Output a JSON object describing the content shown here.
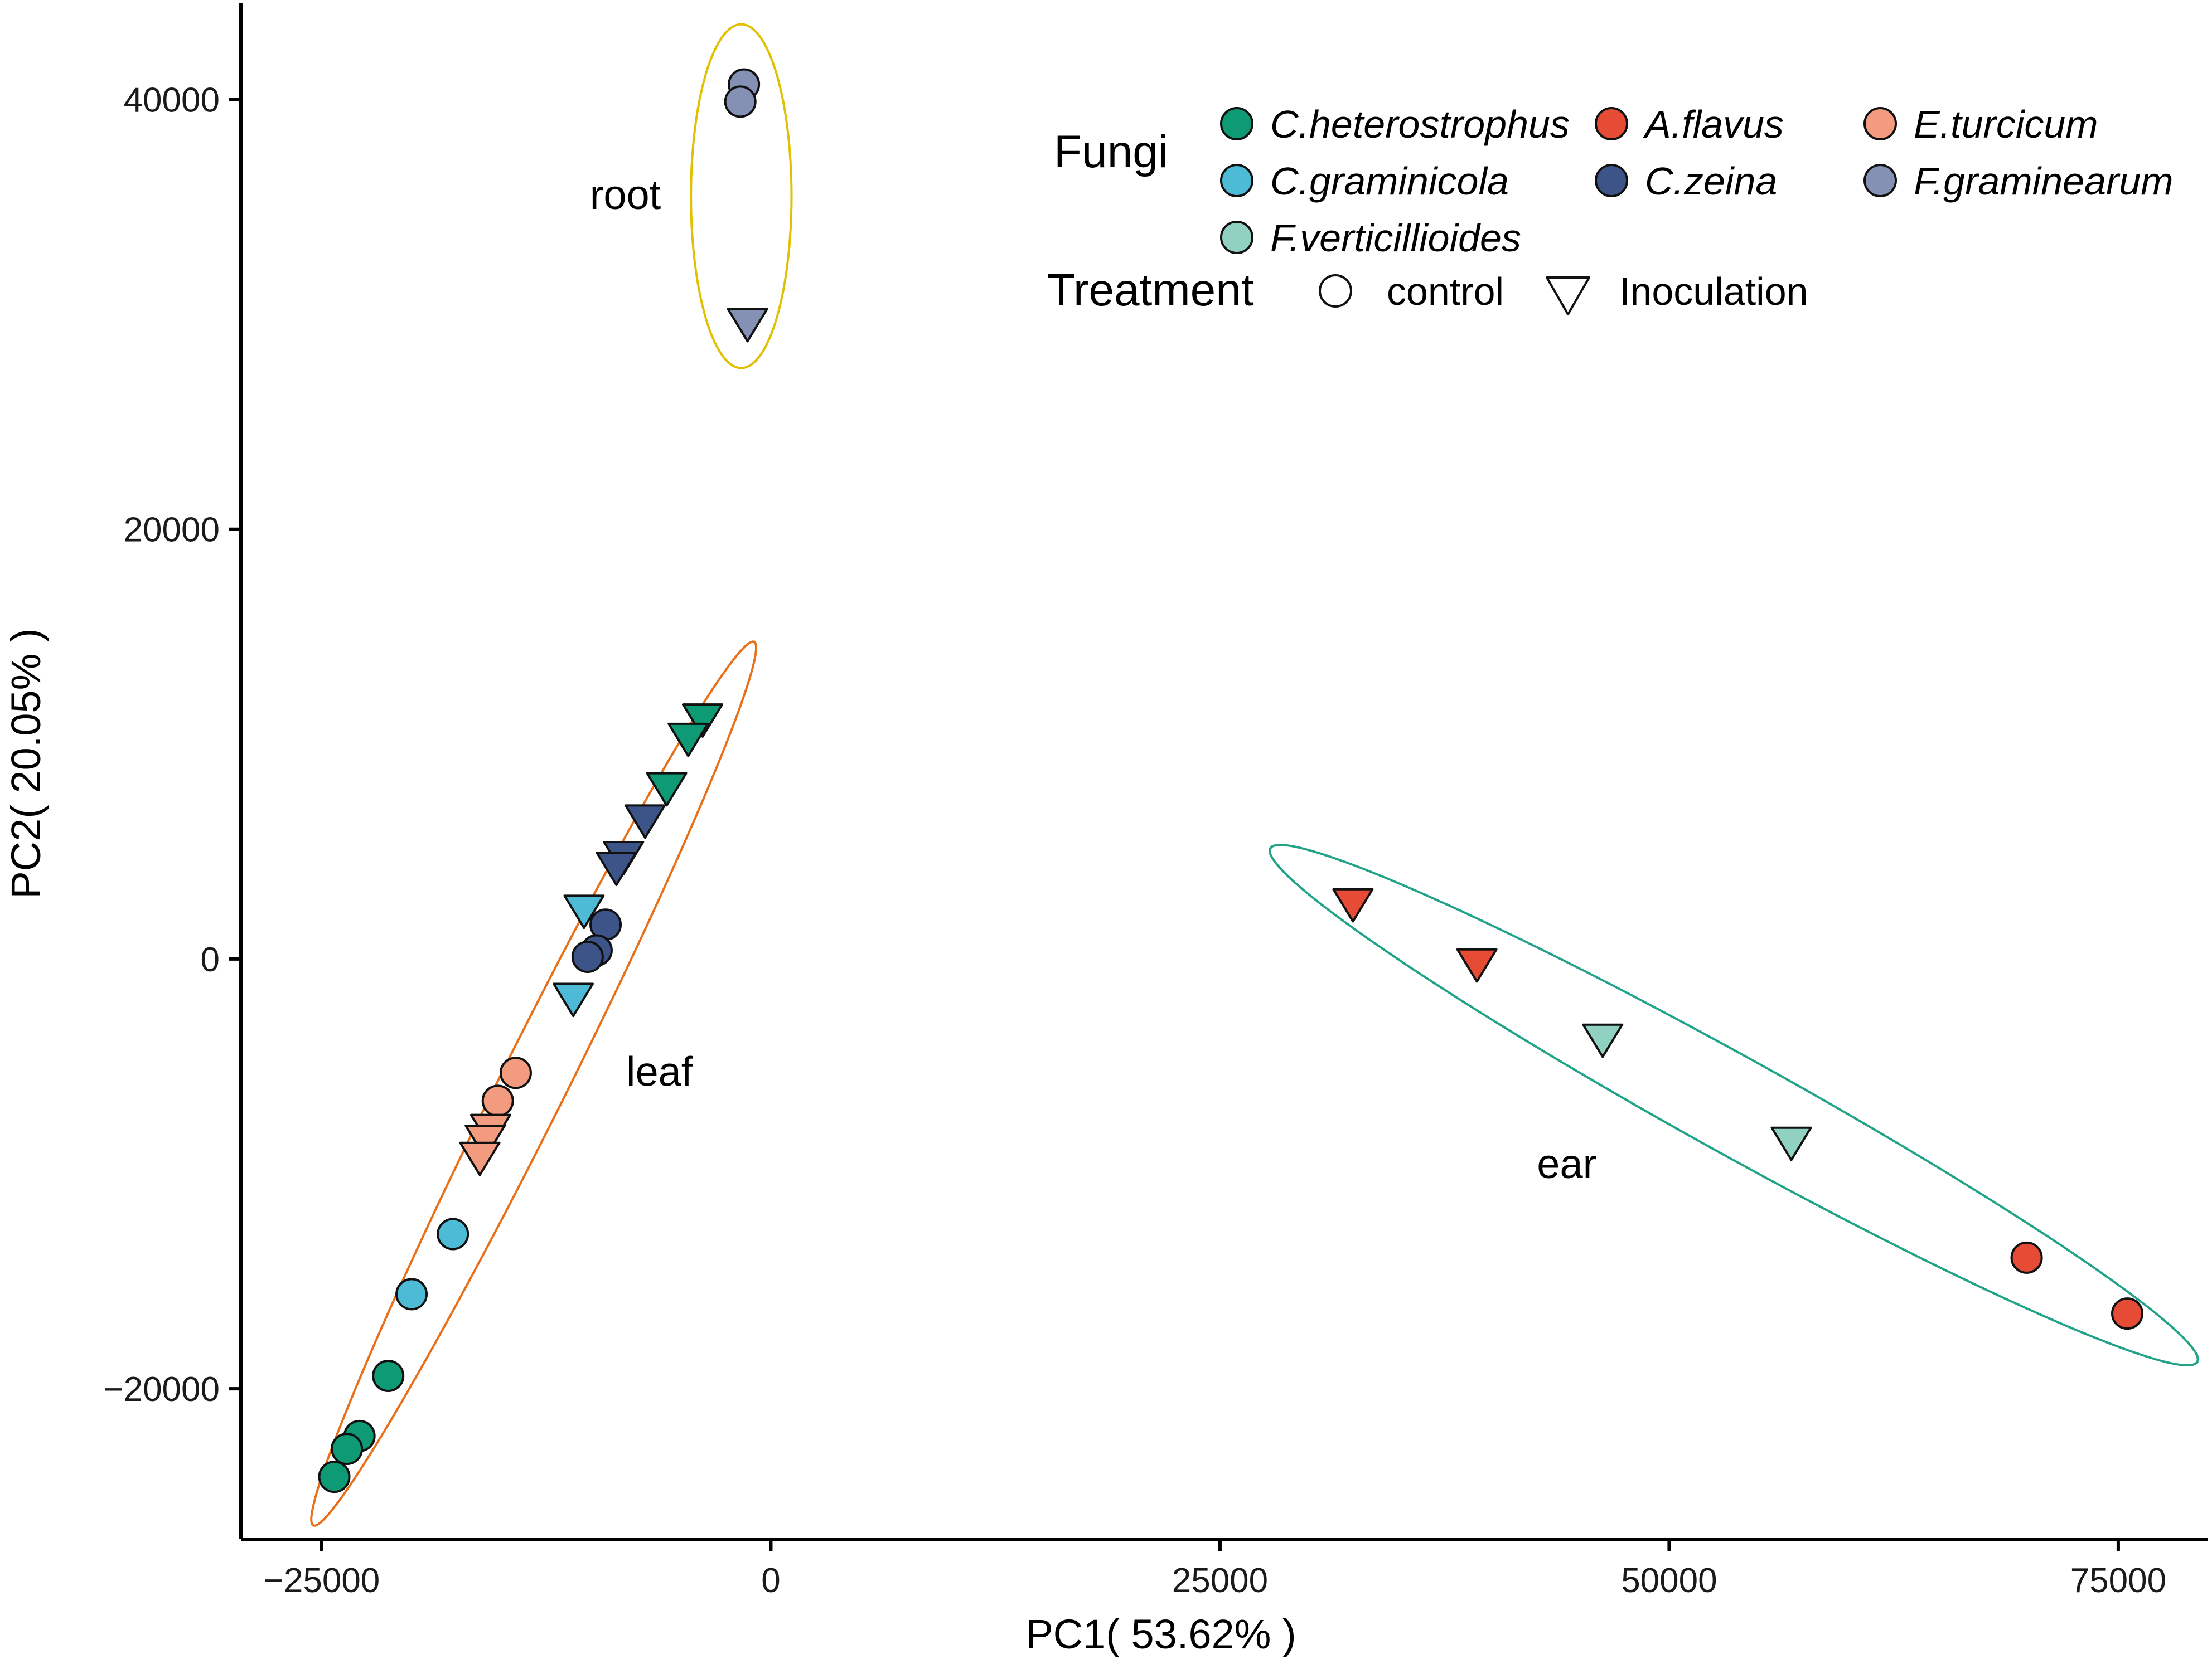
{
  "chart_data": {
    "type": "scatter",
    "xlabel": "PC1( 53.62% )",
    "ylabel": "PC2( 20.05% )",
    "xlim": [
      -29500,
      80000
    ],
    "ylim": [
      -27000,
      44500
    ],
    "xticks": [
      -25000,
      0,
      25000,
      50000,
      75000
    ],
    "xtick_labels": [
      "−25000",
      "0",
      "25000",
      "50000",
      "75000"
    ],
    "yticks": [
      -20000,
      0,
      20000,
      40000
    ],
    "ytick_labels": [
      "−20000",
      "0",
      "20000",
      "40000"
    ],
    "legend": {
      "fungi_title": "Fungi",
      "treatment_title": "Treatment",
      "fungi": [
        {
          "name": "C.heterostrophus",
          "color": "#0E9A74"
        },
        {
          "name": "A.flavus",
          "color": "#E64B35"
        },
        {
          "name": "E.turcicum",
          "color": "#F39B7F"
        },
        {
          "name": "C.graminicola",
          "color": "#4DBBD5"
        },
        {
          "name": "C.zeina",
          "color": "#3C5488"
        },
        {
          "name": "F.graminearum",
          "color": "#8491B4"
        },
        {
          "name": "F.verticillioides",
          "color": "#91D1C2"
        }
      ],
      "treatments": [
        {
          "name": "control",
          "shape": "circle"
        },
        {
          "name": "Inoculation",
          "shape": "triangle-down"
        }
      ]
    },
    "groups": [
      {
        "label": "root",
        "ellipse_color": "#E0C000",
        "label_pos": [
          -8100,
          34900
        ],
        "ellipse": {
          "cx": -1650,
          "cy": 35500,
          "rx": 2800,
          "ry": 8000,
          "angle": 0
        }
      },
      {
        "label": "leaf",
        "ellipse_color": "#E8701A",
        "label_pos": [
          -6200,
          -5900
        ],
        "ellipse": {
          "cx": -13200,
          "cy": -5800,
          "rx": 27500,
          "ry": 1550,
          "angle": 63.5
        }
      },
      {
        "label": "ear",
        "ellipse_color": "#20A387",
        "label_pos": [
          44300,
          -10200
        ],
        "ellipse": {
          "cx": 53600,
          "cy": -6800,
          "rx": 29500,
          "ry": 2250,
          "angle": -29
        }
      }
    ],
    "points": [
      {
        "fungus": "F.graminearum",
        "treatment": "control",
        "x": -1500,
        "y": 40700
      },
      {
        "fungus": "F.graminearum",
        "treatment": "control",
        "x": -1700,
        "y": 39900
      },
      {
        "fungus": "F.graminearum",
        "treatment": "Inoculation",
        "x": -1300,
        "y": 29700
      },
      {
        "fungus": "C.heterostrophus",
        "treatment": "Inoculation",
        "x": -3800,
        "y": 11300
      },
      {
        "fungus": "C.heterostrophus",
        "treatment": "Inoculation",
        "x": -4600,
        "y": 10400
      },
      {
        "fungus": "C.heterostrophus",
        "treatment": "Inoculation",
        "x": -5800,
        "y": 8100
      },
      {
        "fungus": "C.zeina",
        "treatment": "Inoculation",
        "x": -7000,
        "y": 6600
      },
      {
        "fungus": "C.zeina",
        "treatment": "Inoculation",
        "x": -8200,
        "y": 4900
      },
      {
        "fungus": "C.zeina",
        "treatment": "Inoculation",
        "x": -8600,
        "y": 4400
      },
      {
        "fungus": "C.graminicola",
        "treatment": "Inoculation",
        "x": -10400,
        "y": 2400
      },
      {
        "fungus": "C.zeina",
        "treatment": "control",
        "x": -9200,
        "y": 1600
      },
      {
        "fungus": "C.zeina",
        "treatment": "control",
        "x": -9700,
        "y": 400
      },
      {
        "fungus": "C.zeina",
        "treatment": "control",
        "x": -10200,
        "y": 100
      },
      {
        "fungus": "C.graminicola",
        "treatment": "Inoculation",
        "x": -11000,
        "y": -1700
      },
      {
        "fungus": "E.turcicum",
        "treatment": "control",
        "x": -14200,
        "y": -5300
      },
      {
        "fungus": "E.turcicum",
        "treatment": "control",
        "x": -15200,
        "y": -6600
      },
      {
        "fungus": "E.turcicum",
        "treatment": "Inoculation",
        "x": -15600,
        "y": -7800
      },
      {
        "fungus": "E.turcicum",
        "treatment": "Inoculation",
        "x": -15900,
        "y": -8300
      },
      {
        "fungus": "E.turcicum",
        "treatment": "Inoculation",
        "x": -16200,
        "y": -9100
      },
      {
        "fungus": "C.graminicola",
        "treatment": "control",
        "x": -17700,
        "y": -12800
      },
      {
        "fungus": "C.graminicola",
        "treatment": "control",
        "x": -20000,
        "y": -15600
      },
      {
        "fungus": "C.heterostrophus",
        "treatment": "control",
        "x": -21300,
        "y": -19400
      },
      {
        "fungus": "C.heterostrophus",
        "treatment": "control",
        "x": -22900,
        "y": -22200
      },
      {
        "fungus": "C.heterostrophus",
        "treatment": "control",
        "x": -23600,
        "y": -22800
      },
      {
        "fungus": "C.heterostrophus",
        "treatment": "control",
        "x": -24300,
        "y": -24100
      },
      {
        "fungus": "A.flavus",
        "treatment": "Inoculation",
        "x": 32400,
        "y": 2700
      },
      {
        "fungus": "A.flavus",
        "treatment": "Inoculation",
        "x": 39300,
        "y": -100
      },
      {
        "fungus": "F.verticillioides",
        "treatment": "Inoculation",
        "x": 46300,
        "y": -3600
      },
      {
        "fungus": "F.verticillioides",
        "treatment": "Inoculation",
        "x": 56800,
        "y": -8400
      },
      {
        "fungus": "A.flavus",
        "treatment": "control",
        "x": 69900,
        "y": -13900
      },
      {
        "fungus": "A.flavus",
        "treatment": "control",
        "x": 75500,
        "y": -16500
      }
    ]
  }
}
